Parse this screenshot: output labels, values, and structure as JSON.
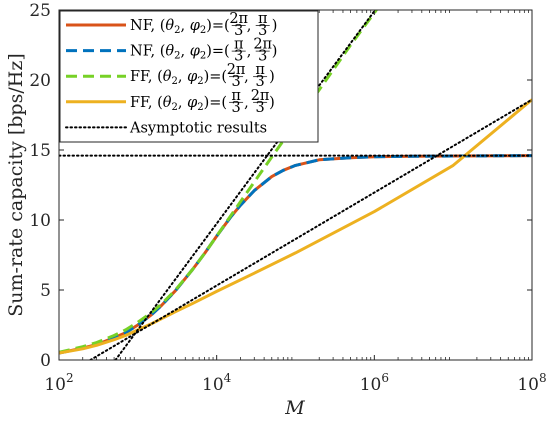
{
  "chart_data": {
    "type": "line",
    "xlabel": "M",
    "ylabel": "Sum-rate capacity [bps/Hz]",
    "xscale": "log",
    "xlim": [
      100,
      100000000
    ],
    "ylim": [
      0,
      25
    ],
    "x_ticks": [
      100,
      10000,
      1000000,
      100000000
    ],
    "x_tick_labels": [
      {
        "base": "10",
        "exp": "2"
      },
      {
        "base": "10",
        "exp": "4"
      },
      {
        "base": "10",
        "exp": "6"
      },
      {
        "base": "10",
        "exp": "8"
      }
    ],
    "y_ticks": [
      0,
      5,
      10,
      15,
      20,
      25
    ],
    "y_tick_labels": [
      "0",
      "5",
      "10",
      "15",
      "20",
      "25"
    ],
    "grid": false,
    "legend_position": "top-left",
    "series": [
      {
        "name": "NF, (θ2, φ2)=(2π/3, π/3)",
        "legend_label": {
          "prefix": "NF, ",
          "num1": "2π",
          "den1": "3",
          "num2": "π",
          "den2": "3"
        },
        "color": "#D95319",
        "dash": "solid",
        "x": [
          100,
          200,
          300,
          500,
          700,
          1000,
          1500,
          2000,
          3000,
          5000,
          7000,
          10000,
          15000,
          20000,
          30000,
          50000,
          70000,
          100000,
          200000,
          500000,
          1000000,
          3000000,
          10000000,
          100000000
        ],
        "y": [
          0.5,
          0.85,
          1.1,
          1.6,
          1.95,
          2.5,
          3.25,
          3.9,
          4.95,
          6.5,
          7.6,
          8.85,
          10.2,
          11.05,
          12.1,
          13.1,
          13.55,
          13.9,
          14.3,
          14.45,
          14.52,
          14.55,
          14.57,
          14.6
        ]
      },
      {
        "name": "NF, (θ2, φ2)=(π/3, 2π/3)",
        "legend_label": {
          "prefix": "NF, ",
          "num1": "π",
          "den1": "3",
          "num2": "2π",
          "den2": "3"
        },
        "color": "#0072BD",
        "dash": "dashed",
        "x": [
          100,
          200,
          300,
          500,
          700,
          1000,
          1500,
          2000,
          3000,
          5000,
          7000,
          10000,
          15000,
          20000,
          30000,
          50000,
          70000,
          100000,
          200000,
          500000,
          1000000,
          3000000,
          10000000,
          100000000
        ],
        "y": [
          0.5,
          0.85,
          1.1,
          1.6,
          1.95,
          2.5,
          3.25,
          3.9,
          4.95,
          6.5,
          7.6,
          8.85,
          10.2,
          11.05,
          12.1,
          13.1,
          13.55,
          13.9,
          14.3,
          14.45,
          14.52,
          14.55,
          14.57,
          14.6
        ]
      },
      {
        "name": "FF, (θ2, φ2)=(2π/3, π/3)",
        "legend_label": {
          "prefix": "FF, ",
          "num1": "2π",
          "den1": "3",
          "num2": "π",
          "den2": "3"
        },
        "color": "#77D126",
        "dash": "dashed",
        "x": [
          100,
          200,
          300,
          500,
          700,
          1000,
          1500,
          2000,
          3000,
          5000,
          7000,
          10000,
          20000,
          50000,
          100000,
          200000,
          500000,
          1000000,
          2000000
        ],
        "y": [
          0.55,
          0.95,
          1.25,
          1.75,
          2.15,
          2.7,
          3.4,
          4.0,
          5.0,
          6.5,
          7.6,
          8.85,
          11.3,
          14.5,
          16.9,
          19.3,
          22.5,
          24.8,
          27.2
        ]
      },
      {
        "name": "FF, (θ2, φ2)=(π/3, 2π/3)",
        "legend_label": {
          "prefix": "FF, ",
          "num1": "π",
          "den1": "3",
          "num2": "2π",
          "den2": "3"
        },
        "color": "#EDB120",
        "dash": "solid",
        "x": [
          100,
          200,
          300,
          500,
          700,
          1000,
          1500,
          2000,
          3000,
          5000,
          10000,
          30000,
          100000,
          1000000,
          10000000,
          100000000
        ],
        "y": [
          0.5,
          0.8,
          1.05,
          1.45,
          1.75,
          2.15,
          2.6,
          2.95,
          3.45,
          4.05,
          4.9,
          6.2,
          7.65,
          10.6,
          13.9,
          18.6
        ]
      },
      {
        "name": "Asymptotic results",
        "legend_label": {
          "text": "Asymptotic results"
        },
        "color": "#000000",
        "dash": "dotted",
        "segments": [
          {
            "x": [
              100,
              100000000
            ],
            "y": [
              14.6,
              14.6
            ]
          },
          {
            "x": [
              520,
              2000000
            ],
            "y": [
              0.0,
              27.2
            ]
          },
          {
            "x": [
              250,
              100000000
            ],
            "y": [
              0.0,
              18.6
            ]
          }
        ]
      }
    ]
  }
}
